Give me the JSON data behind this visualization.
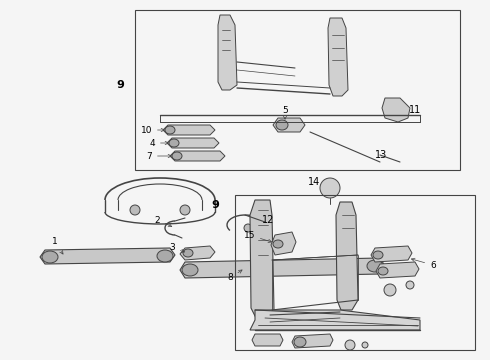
{
  "bg_color": "#f0f0f0",
  "line_color": "#444444",
  "text_color": "#000000",
  "fig_width": 4.9,
  "fig_height": 3.6,
  "dpi": 100
}
